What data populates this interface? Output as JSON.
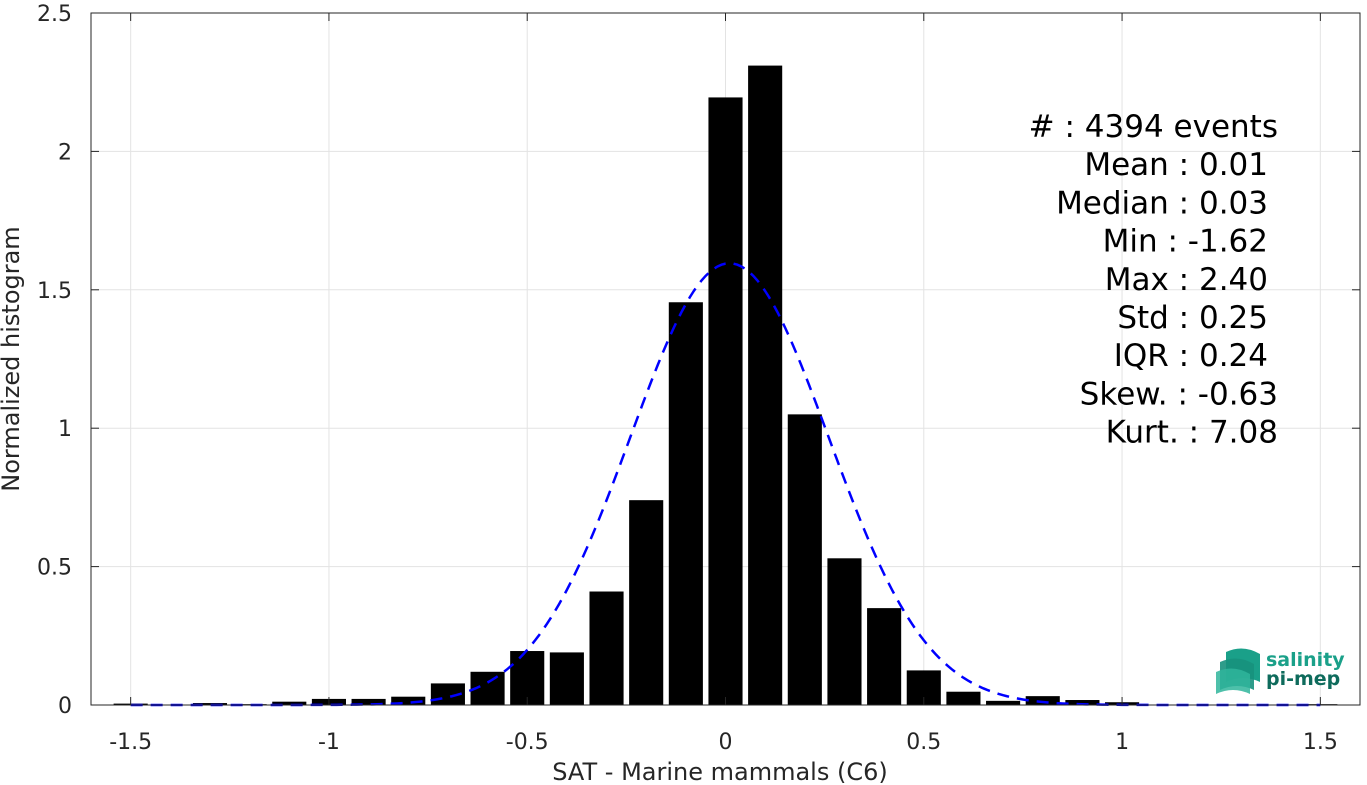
{
  "chart_data": {
    "type": "bar",
    "xlabel": "SAT - Marine mammals (C6)",
    "ylabel": "Normalized histogram",
    "xlim": [
      -1.6,
      1.6
    ],
    "ylim": [
      0,
      2.5
    ],
    "xticks": [
      -1.5,
      -1,
      -0.5,
      0,
      0.5,
      1,
      1.5
    ],
    "xtick_labels": [
      "-1.5",
      "-1",
      "-0.5",
      "0",
      "0.5",
      "1",
      "1.5"
    ],
    "yticks": [
      0,
      0.5,
      1,
      1.5,
      2,
      2.5
    ],
    "ytick_labels": [
      "0",
      "0.5",
      "1",
      "1.5",
      "2",
      "2.5"
    ],
    "grid": true,
    "bar_color": "#000000",
    "bin_width": 0.1,
    "bins": [
      {
        "x": -1.5,
        "y": 0.005
      },
      {
        "x": -1.3,
        "y": 0.007
      },
      {
        "x": -1.2,
        "y": 0.003
      },
      {
        "x": -1.1,
        "y": 0.012
      },
      {
        "x": -1.0,
        "y": 0.022
      },
      {
        "x": -0.9,
        "y": 0.022
      },
      {
        "x": -0.8,
        "y": 0.03
      },
      {
        "x": -0.7,
        "y": 0.078
      },
      {
        "x": -0.6,
        "y": 0.12
      },
      {
        "x": -0.5,
        "y": 0.195
      },
      {
        "x": -0.4,
        "y": 0.19
      },
      {
        "x": -0.3,
        "y": 0.41
      },
      {
        "x": -0.2,
        "y": 0.74
      },
      {
        "x": -0.1,
        "y": 1.455
      },
      {
        "x": 0.0,
        "y": 2.195
      },
      {
        "x": 0.1,
        "y": 2.31
      },
      {
        "x": 0.2,
        "y": 1.05
      },
      {
        "x": 0.3,
        "y": 0.53
      },
      {
        "x": 0.4,
        "y": 0.35
      },
      {
        "x": 0.5,
        "y": 0.125
      },
      {
        "x": 0.6,
        "y": 0.048
      },
      {
        "x": 0.7,
        "y": 0.015
      },
      {
        "x": 0.8,
        "y": 0.032
      },
      {
        "x": 0.9,
        "y": 0.018
      },
      {
        "x": 1.0,
        "y": 0.01
      },
      {
        "x": 1.5,
        "y": 0.003
      }
    ],
    "fit_curve": {
      "type": "gaussian",
      "color": "#0000ff",
      "style": "dashed",
      "mean": 0.01,
      "std": 0.25,
      "x_range": [
        -1.5,
        1.5
      ]
    }
  },
  "stats": {
    "lines": [
      "#  : 4394 events",
      "Mean : 0.01",
      "Median : 0.03",
      "Min : -1.62",
      "Max : 2.40",
      "Std : 0.25",
      "IQR : 0.24",
      "Skew. : -0.63",
      "Kurt. : 7.08"
    ]
  },
  "logo": {
    "line1": "salinity",
    "line2": "pi-mep",
    "colors": {
      "primary": "#1aa089",
      "secondary": "#0e6b5c"
    }
  }
}
